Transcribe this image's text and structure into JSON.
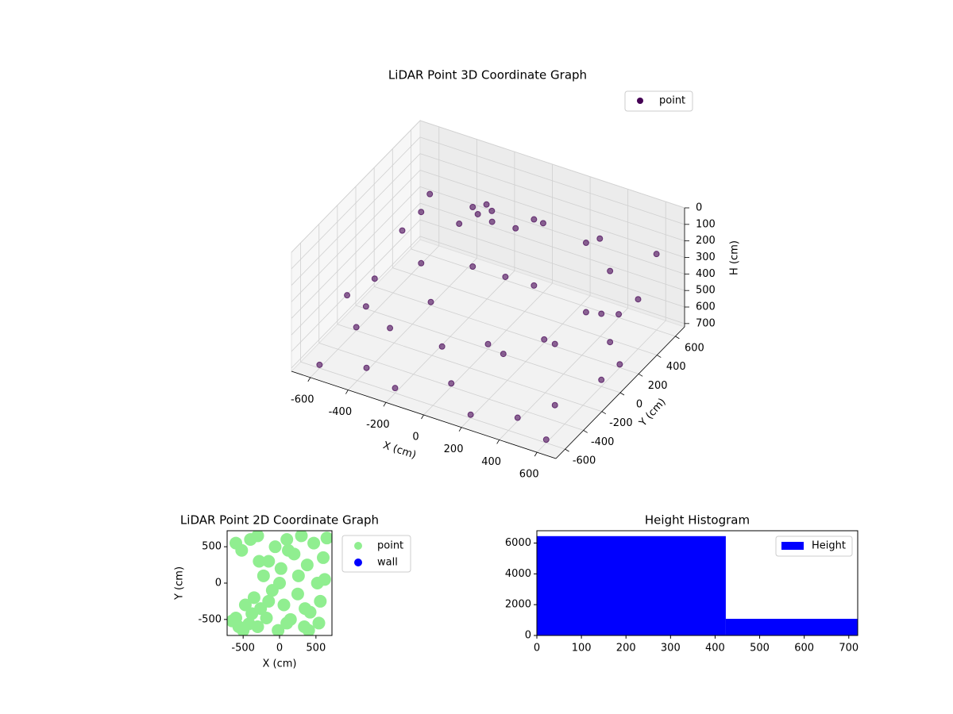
{
  "chart_data": [
    {
      "type": "scatter3d",
      "title": "LiDAR Point 3D Coordinate Graph",
      "xlabel": "X (cm)",
      "ylabel": "Y (cm)",
      "zlabel": "H (cm)",
      "xlim": [
        -700,
        700
      ],
      "ylim": [
        -700,
        700
      ],
      "zlim": [
        720,
        0
      ],
      "xticks": [
        -600,
        -400,
        -200,
        0,
        200,
        400,
        600
      ],
      "yticks": [
        -600,
        -400,
        -200,
        0,
        200,
        400,
        600
      ],
      "zticks": [
        0,
        100,
        200,
        300,
        400,
        500,
        600,
        700
      ],
      "grid": true,
      "legend": "upper right",
      "series": [
        {
          "name": "point",
          "color": "#440154",
          "x": [
            -500,
            -300,
            0,
            300,
            500,
            600,
            500,
            300,
            0,
            -300,
            -500,
            -600,
            -500,
            -300,
            0,
            300,
            500,
            600,
            500,
            -600,
            -400,
            -200,
            0,
            200,
            400,
            600,
            -600,
            600,
            400,
            -200,
            0,
            200,
            -400,
            -200,
            -100,
            -150,
            0,
            -250,
            -600,
            -300,
            0,
            300,
            600,
            600,
            -600,
            -600
          ],
          "y": [
            300,
            450,
            500,
            450,
            300,
            0,
            -300,
            -450,
            -500,
            -450,
            -300,
            0,
            300,
            450,
            500,
            450,
            300,
            0,
            -300,
            -600,
            -500,
            -600,
            -400,
            -600,
            -500,
            -600,
            -200,
            200,
            600,
            600,
            0,
            200,
            200,
            300,
            250,
            350,
            300,
            200,
            600,
            600,
            600,
            600,
            600,
            400,
            300,
            -300
          ],
          "z": [
            250,
            230,
            220,
            220,
            230,
            280,
            330,
            380,
            420,
            450,
            480,
            520,
            560,
            590,
            620,
            640,
            660,
            680,
            700,
            700,
            700,
            690,
            700,
            700,
            700,
            700,
            700,
            700,
            700,
            700,
            690,
            700,
            700,
            150,
            130,
            140,
            160,
            170,
            350,
            300,
            300,
            280,
            260,
            420,
            400,
            450
          ]
        }
      ]
    },
    {
      "type": "scatter",
      "title": "LiDAR Point 2D Coordinate Graph",
      "xlabel": "X (cm)",
      "ylabel": "Y (cm)",
      "xlim": [
        -720,
        720
      ],
      "ylim": [
        -720,
        720
      ],
      "xticks": [
        -500,
        0,
        500
      ],
      "yticks": [
        -500,
        0,
        500
      ],
      "legend": "outside right",
      "series": [
        {
          "name": "point",
          "color": "#90ee90",
          "x": [
            -650,
            -600,
            -560,
            -500,
            -470,
            -420,
            -380,
            -350,
            -300,
            -260,
            -220,
            -180,
            -150,
            -100,
            -60,
            -20,
            20,
            60,
            100,
            150,
            200,
            250,
            300,
            340,
            380,
            420,
            470,
            520,
            560,
            600,
            650,
            -520,
            -400,
            -280,
            -150,
            0,
            120,
            260,
            400,
            540,
            -600,
            -300,
            100,
            350,
            620
          ],
          "y": [
            -520,
            -480,
            -600,
            -650,
            -300,
            -560,
            -420,
            -200,
            -600,
            -350,
            100,
            -480,
            300,
            -100,
            500,
            -650,
            200,
            -300,
            600,
            -500,
            400,
            -150,
            650,
            -600,
            250,
            -400,
            550,
            0,
            -250,
            350,
            620,
            450,
            600,
            300,
            -250,
            0,
            450,
            100,
            -650,
            -550,
            550,
            650,
            -550,
            -350,
            50
          ]
        },
        {
          "name": "wall",
          "color": "#0000ff",
          "x": [],
          "y": []
        }
      ]
    },
    {
      "type": "histogram",
      "title": "Height Histogram",
      "bins": [
        0,
        424,
        720
      ],
      "legend": "upper right",
      "series": [
        {
          "name": "Height",
          "color": "#0000ff",
          "values": [
            6450,
            1080
          ]
        }
      ],
      "xlim": [
        0,
        720
      ],
      "ylim": [
        0,
        6800
      ],
      "xticks": [
        0,
        100,
        200,
        300,
        400,
        500,
        600,
        700
      ],
      "yticks": [
        0,
        2000,
        4000,
        6000
      ]
    }
  ]
}
